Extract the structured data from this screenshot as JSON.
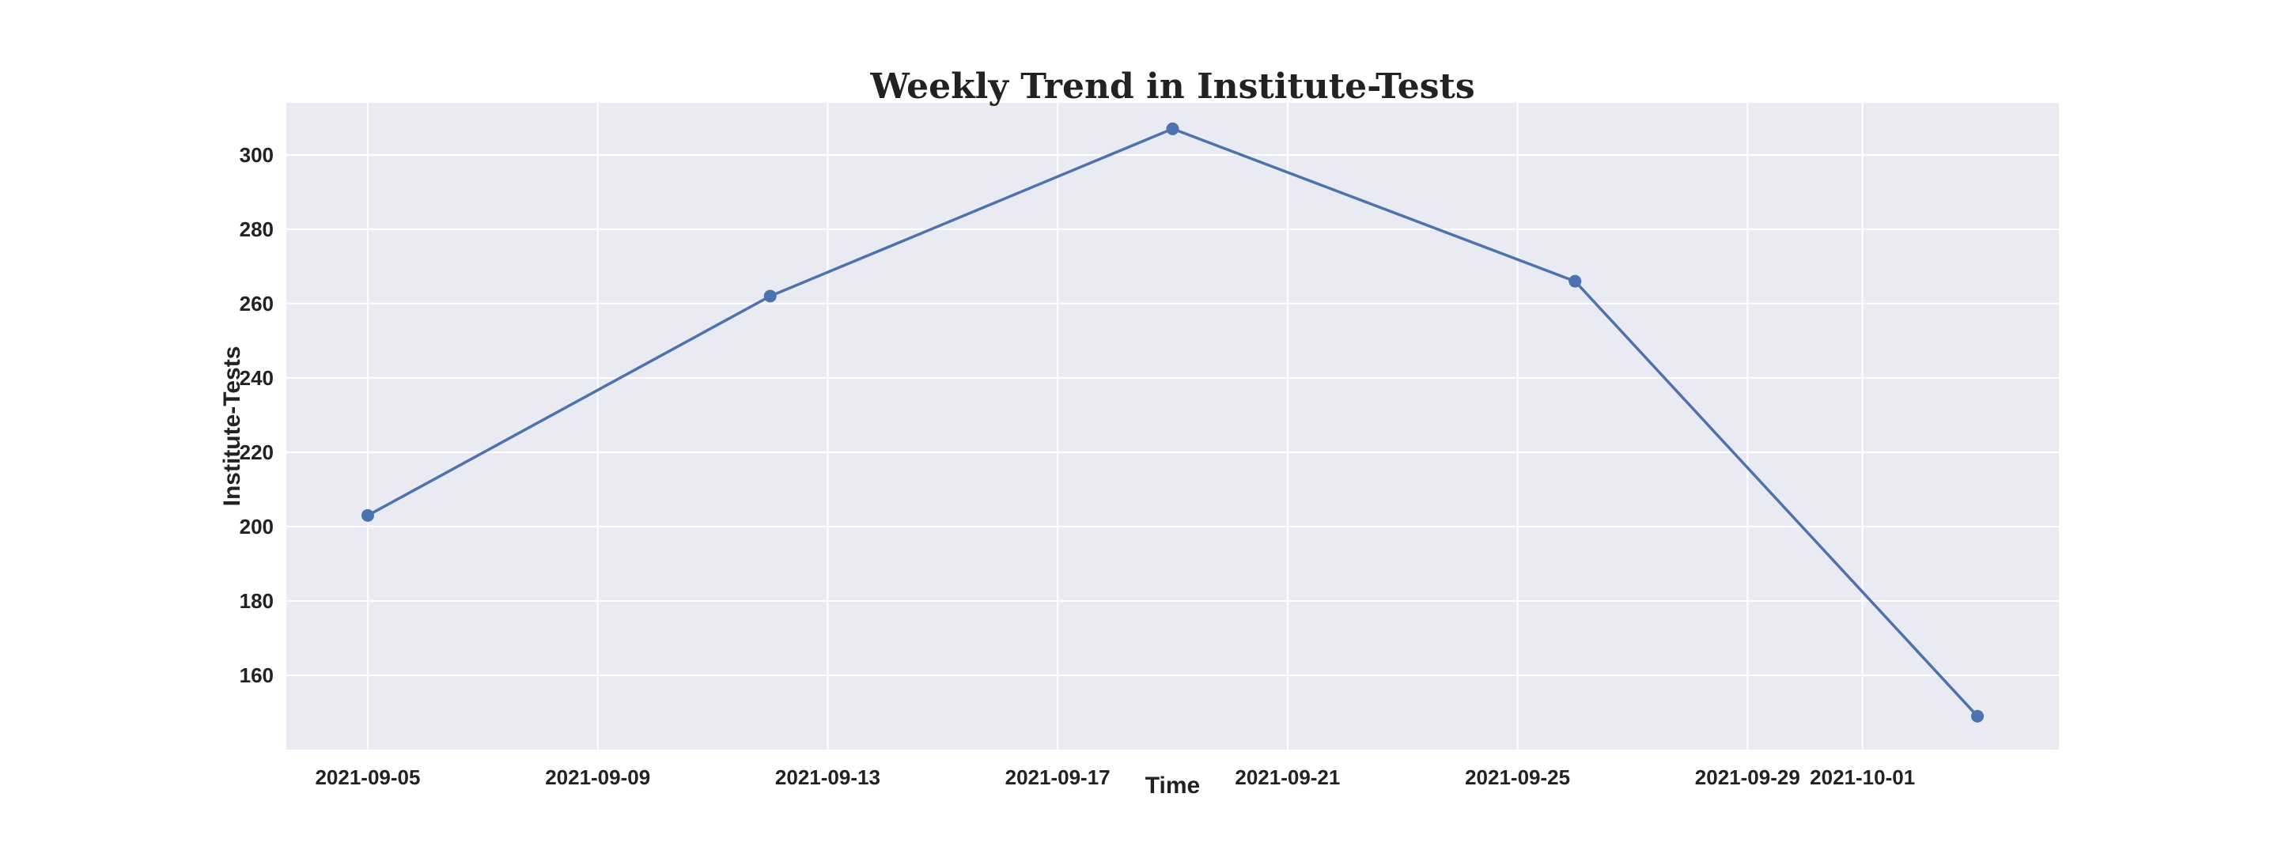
{
  "chart_data": {
    "type": "line",
    "title": "Weekly Trend in Institute-Tests",
    "xlabel": "Time",
    "ylabel": "Institute-Tests",
    "x_is_date": true,
    "series": [
      {
        "x": [
          "2021-09-05",
          "2021-09-12",
          "2021-09-19",
          "2021-09-26",
          "2021-10-03"
        ],
        "values": [
          203,
          262,
          307,
          266,
          149
        ],
        "color": "#4c72b0",
        "marker": "circle"
      }
    ],
    "xticks": [
      "2021-09-05",
      "2021-09-09",
      "2021-09-13",
      "2021-09-17",
      "2021-09-21",
      "2021-09-25",
      "2021-09-29",
      "2021-10-01"
    ],
    "yticks": [
      160,
      180,
      200,
      220,
      240,
      260,
      280,
      300
    ],
    "xlim": [
      "2021-09-03 14:00",
      "2021-10-04 10:00"
    ],
    "ylim": [
      140,
      314
    ],
    "grid": true,
    "legend": "none",
    "colors": {
      "plot_background": "#eaeaf2",
      "grid": "#ffffff",
      "line": "#4c72b0"
    }
  }
}
